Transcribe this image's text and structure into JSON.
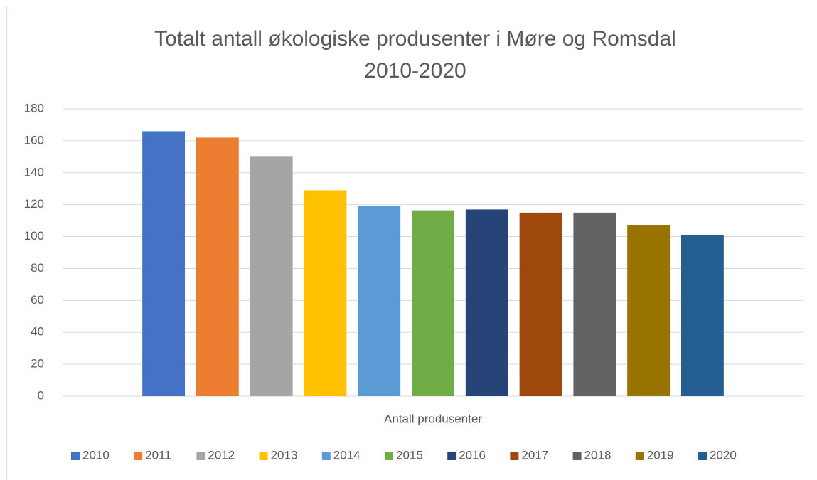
{
  "chart_data": {
    "type": "bar",
    "title": [
      "Totalt antall økologiske produsenter i Møre og Romsdal",
      "2010-2020"
    ],
    "categories": [
      "Antall produsenter"
    ],
    "series": [
      {
        "name": "2010",
        "color": "#4472c4",
        "values": [
          166
        ]
      },
      {
        "name": "2011",
        "color": "#ed7d31",
        "values": [
          162
        ]
      },
      {
        "name": "2012",
        "color": "#a5a5a5",
        "values": [
          150
        ]
      },
      {
        "name": "2013",
        "color": "#ffc000",
        "values": [
          129
        ]
      },
      {
        "name": "2014",
        "color": "#5b9bd5",
        "values": [
          119
        ]
      },
      {
        "name": "2015",
        "color": "#70ad47",
        "values": [
          116
        ]
      },
      {
        "name": "2016",
        "color": "#264478",
        "values": [
          117
        ]
      },
      {
        "name": "2017",
        "color": "#9e480e",
        "values": [
          115
        ]
      },
      {
        "name": "2018",
        "color": "#636363",
        "values": [
          115
        ]
      },
      {
        "name": "2019",
        "color": "#997300",
        "values": [
          107
        ]
      },
      {
        "name": "2020",
        "color": "#255e91",
        "values": [
          101
        ]
      }
    ],
    "ylim": [
      0,
      180
    ],
    "yticks": [
      0,
      20,
      40,
      60,
      80,
      100,
      120,
      140,
      160,
      180
    ],
    "grid": true,
    "legend": "bottom"
  }
}
